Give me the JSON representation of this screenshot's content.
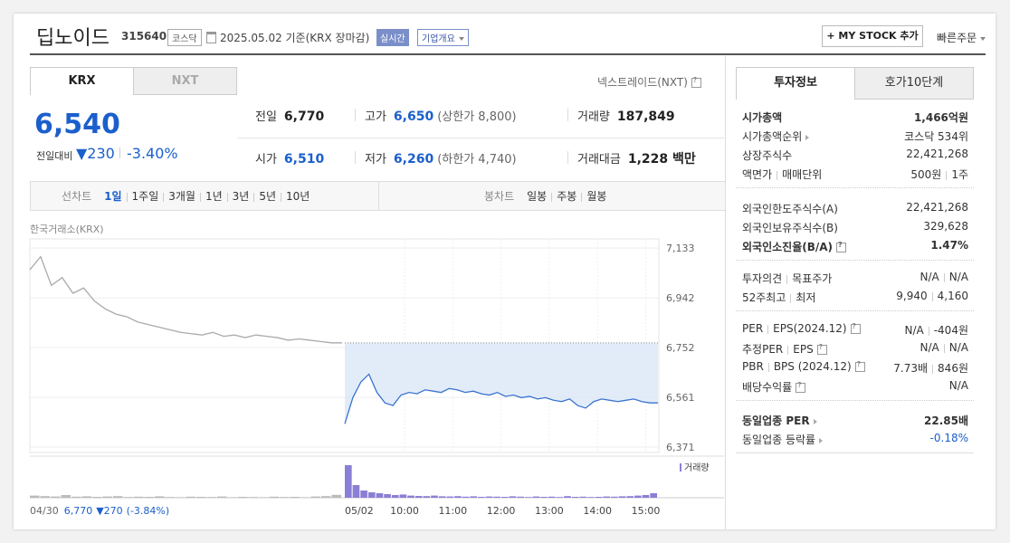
{
  "header": {
    "name": "딥노이드",
    "code": "315640",
    "market": "코스닥",
    "date": "2025.05.02 기준(KRX 장마감)",
    "realtime": "실시간",
    "company_info": "기업개요",
    "my_stock": "+ MY STOCK 추가",
    "quick_order": "빠른주문"
  },
  "tabs": [
    "KRX",
    "NXT"
  ],
  "nxt_link": "넥스트레이드(NXT)",
  "price": {
    "current": "6,540",
    "change_label": "전일대비",
    "change": "▼230",
    "rate": "-3.40%"
  },
  "quote": {
    "rows": [
      [
        {
          "label": "전일",
          "value": "6,770"
        },
        {
          "label": "고가",
          "value": "6,650",
          "sub": "(상한가 8,800)",
          "color": "#1b5fcc"
        },
        {
          "label": "거래량",
          "value": "187,849"
        }
      ],
      [
        {
          "label": "시가",
          "value": "6,510",
          "color": "#1b5fcc"
        },
        {
          "label": "저가",
          "value": "6,260",
          "sub": "(하한가 4,740)",
          "color": "#1b5fcc"
        },
        {
          "label": "거래대금",
          "value": "1,228 백만"
        }
      ]
    ]
  },
  "periods": {
    "line_label": "선차트",
    "line": [
      "1일",
      "1주일",
      "3개월",
      "1년",
      "3년",
      "5년",
      "10년"
    ],
    "selected": 0,
    "candle_label": "봉차트",
    "candle": [
      "일봉",
      "주봉",
      "월봉"
    ]
  },
  "chart_data": {
    "type": "line",
    "source": "한국거래소(KRX)",
    "ylim": [
      6350,
      7168
    ],
    "yticks": [
      {
        "value": 7133,
        "label": "7,133"
      },
      {
        "value": 6942,
        "label": "6,942"
      },
      {
        "value": 6752,
        "label": "6,752"
      },
      {
        "value": 6561,
        "label": "6,561"
      },
      {
        "value": 6371,
        "label": "6,371"
      }
    ],
    "reference": 6770,
    "series": [
      {
        "color": "#aaaaaa",
        "values": [
          7050,
          7100,
          6990,
          7020,
          6960,
          6980,
          6930,
          6900,
          6880,
          6870,
          6850,
          6840,
          6830,
          6820,
          6810,
          6805,
          6800,
          6810,
          6795,
          6800,
          6790,
          6800,
          6795,
          6790,
          6780,
          6785,
          6780,
          6775,
          6770,
          6770
        ]
      },
      {
        "color": "#3b74cf",
        "values": [
          6460,
          6560,
          6620,
          6650,
          6580,
          6540,
          6530,
          6570,
          6580,
          6575,
          6590,
          6585,
          6580,
          6595,
          6590,
          6580,
          6585,
          6575,
          6570,
          6580,
          6565,
          6570,
          6560,
          6565,
          6555,
          6560,
          6550,
          6545,
          6555,
          6530,
          6520,
          6545,
          6555,
          6550,
          6545,
          6550,
          6555,
          6545,
          6540,
          6540
        ]
      }
    ],
    "x_labels": [
      "05/02",
      "10:00",
      "11:00",
      "12:00",
      "13:00",
      "14:00",
      "15:00"
    ],
    "prev_summary": {
      "date": "04/30",
      "close": "6,770",
      "change": "▼270",
      "rate": "(-3.84%)"
    },
    "volume": {
      "label": "거래량",
      "ylim": [
        0,
        20000
      ],
      "series": [
        {
          "color": "#bbbbbb",
          "values": [
            1200,
            900,
            700,
            1500,
            600,
            800,
            500,
            700,
            900,
            400,
            600,
            500,
            800,
            400,
            300,
            600,
            500,
            400,
            700,
            300,
            500,
            400,
            300,
            600,
            400,
            500,
            300,
            700,
            900,
            1600
          ]
        },
        {
          "color": "#8a7fd6",
          "values": [
            18000,
            7000,
            4000,
            3000,
            2500,
            2000,
            1500,
            1800,
            1200,
            1000,
            900,
            1200,
            800,
            700,
            900,
            600,
            800,
            500,
            700,
            600,
            500,
            800,
            600,
            400,
            700,
            500,
            600,
            400,
            900,
            500,
            600,
            400,
            500,
            700,
            600,
            800,
            900,
            1200,
            1500,
            2500
          ]
        }
      ]
    }
  },
  "invest": {
    "tabs": [
      "투자정보",
      "호가10단계"
    ],
    "groups": [
      [
        {
          "label": [
            "시가총액"
          ],
          "value": [
            "1,466억원"
          ],
          "bold": true
        },
        {
          "label": [
            "시가총액순위"
          ],
          "arrow": true,
          "value": [
            "코스닥 534위"
          ]
        },
        {
          "label": [
            "상장주식수"
          ],
          "value": [
            "22,421,268"
          ]
        },
        {
          "label": [
            "액면가",
            "매매단위"
          ],
          "value": [
            "500원",
            "1주"
          ]
        }
      ],
      [
        {
          "label": [
            "외국인한도주식수(A)"
          ],
          "value": [
            "22,421,268"
          ]
        },
        {
          "label": [
            "외국인보유주식수(B)"
          ],
          "value": [
            "329,628"
          ]
        },
        {
          "label": [
            "외국인소진율(B/A)"
          ],
          "help": true,
          "value": [
            "1.47%"
          ],
          "bold": true
        }
      ],
      [
        {
          "label": [
            "투자의견",
            "목표주가"
          ],
          "value": [
            "N/A",
            "N/A"
          ]
        },
        {
          "label": [
            "52주최고",
            "최저"
          ],
          "value": [
            "9,940",
            "4,160"
          ]
        }
      ],
      [
        {
          "label": [
            "PER",
            "EPS(2024.12)"
          ],
          "help": true,
          "value": [
            "N/A",
            "-404원"
          ]
        },
        {
          "label": [
            "추정PER",
            "EPS"
          ],
          "help": true,
          "value": [
            "N/A",
            "N/A"
          ]
        },
        {
          "label": [
            "PBR",
            "BPS (2024.12)"
          ],
          "help": true,
          "value": [
            "7.73배",
            "846원"
          ]
        },
        {
          "label": [
            "배당수익률"
          ],
          "help": true,
          "value": [
            "N/A"
          ]
        }
      ],
      [
        {
          "label": [
            "동일업종 PER"
          ],
          "arrow": true,
          "value": [
            "22.85배"
          ],
          "bold": true
        },
        {
          "label": [
            "동일업종 등락률"
          ],
          "arrow": true,
          "value": [
            "-0.18%"
          ],
          "color": "#1b5fcc"
        }
      ]
    ]
  }
}
